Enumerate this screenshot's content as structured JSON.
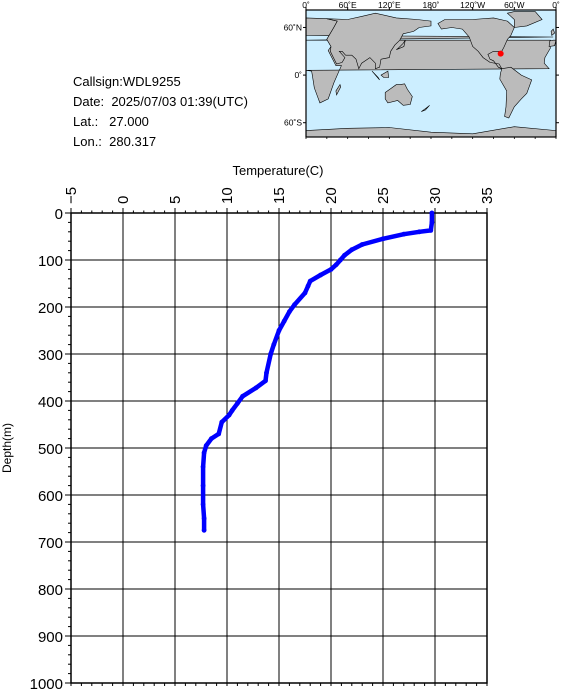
{
  "station": {
    "callsign_label": "Callsign:",
    "callsign": "WDL9255",
    "date_label": "Date:",
    "date": "2025/07/03 01:39(UTC)",
    "lat_label": "Lat.:",
    "lat": "27.000",
    "lon_label": "Lon.:",
    "lon": "280.317"
  },
  "map": {
    "lon_ticks": [
      "0˚",
      "60˚E",
      "120˚E",
      "180˚",
      "120˚W",
      "60˚W",
      "0˚"
    ],
    "lat_ticks": [
      "60˚N",
      "0˚",
      "60˚S"
    ],
    "marker": {
      "lat": 27.0,
      "lon": 280.317,
      "color": "#ff0000"
    },
    "ocean_color": "#cceeff",
    "land_color": "#bbbbbb"
  },
  "chart_data": {
    "type": "line",
    "xlabel": "Temperature(C)",
    "ylabel": "Depth(m)",
    "xlim": [
      -5,
      35
    ],
    "ylim": [
      0,
      1000
    ],
    "x_ticks": [
      "-5",
      "0",
      "5",
      "10",
      "15",
      "20",
      "25",
      "30",
      "35"
    ],
    "y_ticks": [
      "0",
      "100",
      "200",
      "300",
      "400",
      "500",
      "600",
      "700",
      "800",
      "900",
      "1000"
    ],
    "y_inverted": true,
    "grid": true,
    "series": [
      {
        "color": "#0000ff",
        "points": [
          [
            29.7,
            0
          ],
          [
            29.7,
            20
          ],
          [
            29.6,
            37
          ],
          [
            28.5,
            40
          ],
          [
            27.0,
            45
          ],
          [
            25.0,
            55
          ],
          [
            23.0,
            67
          ],
          [
            22.0,
            78
          ],
          [
            21.3,
            90
          ],
          [
            20.9,
            100
          ],
          [
            20.5,
            110
          ],
          [
            20.0,
            120
          ],
          [
            19.0,
            132
          ],
          [
            18.0,
            145
          ],
          [
            17.8,
            155
          ],
          [
            17.5,
            170
          ],
          [
            16.5,
            195
          ],
          [
            16.0,
            210
          ],
          [
            15.5,
            230
          ],
          [
            15.0,
            250
          ],
          [
            14.5,
            280
          ],
          [
            14.2,
            300
          ],
          [
            13.8,
            340
          ],
          [
            13.7,
            357
          ],
          [
            12.8,
            372
          ],
          [
            11.5,
            390
          ],
          [
            11.0,
            405
          ],
          [
            10.5,
            420
          ],
          [
            10.2,
            430
          ],
          [
            9.5,
            445
          ],
          [
            9.2,
            470
          ],
          [
            8.5,
            480
          ],
          [
            8.0,
            495
          ],
          [
            7.8,
            510
          ],
          [
            7.7,
            540
          ],
          [
            7.7,
            580
          ],
          [
            7.7,
            620
          ],
          [
            7.8,
            650
          ],
          [
            7.8,
            675
          ]
        ]
      }
    ]
  }
}
